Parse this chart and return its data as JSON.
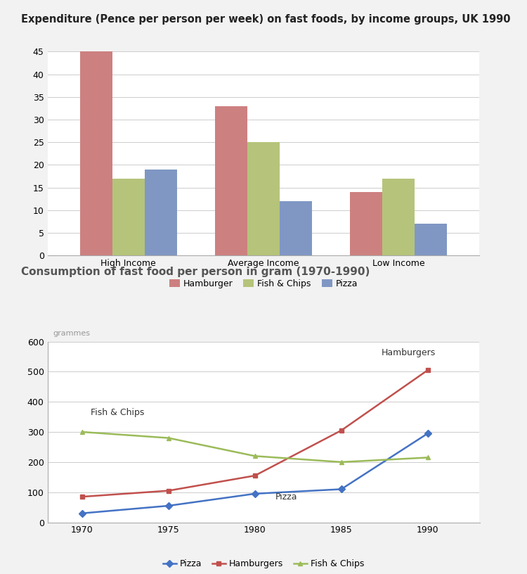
{
  "title1": "Expenditure (Pence per person per week) on fast foods, by income groups, UK 1990",
  "title1_color": "#222222",
  "title2": "Consumption of fast food per person in gram (1970-1990)",
  "title2_color": "#555555",
  "bar_categories": [
    "High Income",
    "Average Income",
    "Low Income"
  ],
  "bar_hamburger": [
    45,
    33,
    14
  ],
  "bar_fish_chips": [
    17,
    25,
    17
  ],
  "bar_pizza": [
    19,
    12,
    7
  ],
  "bar_color_hamburger": "#cd8080",
  "bar_color_fish_chips": "#b5c47a",
  "bar_color_pizza": "#8097c4",
  "bar_ylim": [
    0,
    45
  ],
  "bar_yticks": [
    0,
    5,
    10,
    15,
    20,
    25,
    30,
    35,
    40,
    45
  ],
  "line_years": [
    1970,
    1975,
    1980,
    1985,
    1990
  ],
  "line_pizza": [
    30,
    55,
    95,
    110,
    295
  ],
  "line_hamburgers": [
    85,
    105,
    155,
    305,
    505
  ],
  "line_fish_chips": [
    300,
    280,
    220,
    200,
    215
  ],
  "line_color_pizza": "#4472c4",
  "line_color_hamburgers": "#c0504d",
  "line_color_fish_chips": "#9bbb59",
  "line_ylim": [
    0,
    600
  ],
  "line_yticks": [
    0,
    100,
    200,
    300,
    400,
    500,
    600
  ],
  "line_ylabel": "grammes",
  "bg_color": "#f2f2f2",
  "plot_bg_color": "#ffffff",
  "grid_color": "#cccccc"
}
